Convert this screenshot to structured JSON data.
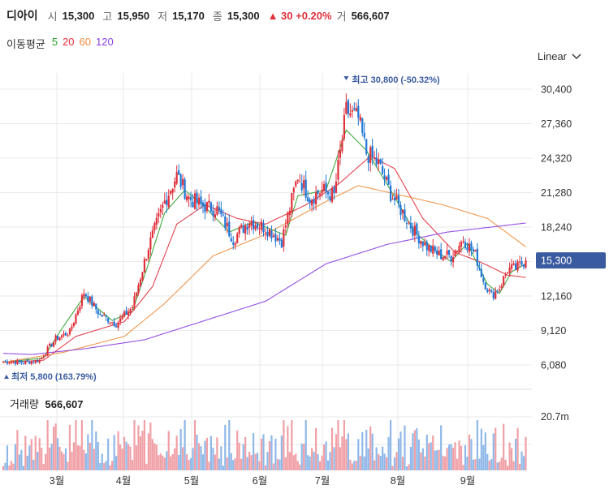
{
  "header": {
    "name": "디아이",
    "open_label": "시",
    "open": "15,300",
    "high_label": "고",
    "high": "15,950",
    "low_label": "저",
    "low": "15,170",
    "close_label": "종",
    "close": "15,300",
    "change": "▲ 30 +0.20%",
    "volume_label": "거",
    "volume": "566,607"
  },
  "ma_legend": {
    "title": "이동평균",
    "items": [
      {
        "label": "5",
        "color": "#2ca02c"
      },
      {
        "label": "20",
        "color": "#e0303b"
      },
      {
        "label": "60",
        "color": "#f08c3a"
      },
      {
        "label": "120",
        "color": "#8a3ee0"
      }
    ]
  },
  "scale_selector": {
    "value": "Linear",
    "icon": "chevron-down-icon"
  },
  "colors": {
    "up": "#e0303b",
    "down": "#1f77d4",
    "grid": "#e9e9e9",
    "tag": "#3a5ba0"
  },
  "chart_data": {
    "type": "candlestick",
    "y_ticks": [
      "30,400",
      "27,360",
      "24,320",
      "21,280",
      "18,240",
      "15,300",
      "12,160",
      "9,120",
      "6,080"
    ],
    "y_range": [
      6080,
      30400
    ],
    "months": [
      "3월",
      "4월",
      "5월",
      "6월",
      "7월",
      "8월",
      "9월"
    ],
    "current_price": "15,300",
    "high_annotation": "최고 30,800 (-50.32%)",
    "low_annotation": "최저 5,800 (163.79%)",
    "volume_title": "거래량",
    "volume_value": "566,607",
    "volume_tick": "20.7m",
    "ohlc_anchors": [
      [
        0,
        6400
      ],
      [
        10,
        6300
      ],
      [
        18,
        6500
      ],
      [
        26,
        8400
      ],
      [
        33,
        9000
      ],
      [
        40,
        12500
      ],
      [
        48,
        10500
      ],
      [
        56,
        9700
      ],
      [
        64,
        11200
      ],
      [
        72,
        16500
      ],
      [
        80,
        20500
      ],
      [
        86,
        22800
      ],
      [
        92,
        20800
      ],
      [
        98,
        20200
      ],
      [
        106,
        19800
      ],
      [
        114,
        17200
      ],
      [
        122,
        18800
      ],
      [
        130,
        18200
      ],
      [
        138,
        17000
      ],
      [
        146,
        22800
      ],
      [
        152,
        20800
      ],
      [
        158,
        21500
      ],
      [
        164,
        21000
      ],
      [
        170,
        28500
      ],
      [
        176,
        27800
      ],
      [
        180,
        24800
      ],
      [
        186,
        23800
      ],
      [
        192,
        21200
      ],
      [
        198,
        19500
      ],
      [
        204,
        17800
      ],
      [
        210,
        16500
      ],
      [
        216,
        15800
      ],
      [
        222,
        15700
      ],
      [
        228,
        17200
      ],
      [
        234,
        15800
      ],
      [
        238,
        13500
      ],
      [
        242,
        12200
      ],
      [
        246,
        12900
      ],
      [
        250,
        14500
      ],
      [
        254,
        14600
      ],
      [
        259,
        15300
      ]
    ],
    "ma_series": {
      "ma5": [
        [
          0,
          6300
        ],
        [
          20,
          6700
        ],
        [
          28,
          9000
        ],
        [
          40,
          12100
        ],
        [
          54,
          10000
        ],
        [
          64,
          10800
        ],
        [
          72,
          15000
        ],
        [
          80,
          19500
        ],
        [
          90,
          21500
        ],
        [
          100,
          20000
        ],
        [
          112,
          17800
        ],
        [
          124,
          18700
        ],
        [
          140,
          17500
        ],
        [
          146,
          21000
        ],
        [
          160,
          21500
        ],
        [
          170,
          26800
        ],
        [
          180,
          25000
        ],
        [
          192,
          21500
        ],
        [
          204,
          17800
        ],
        [
          214,
          16200
        ],
        [
          222,
          15200
        ],
        [
          230,
          16800
        ],
        [
          240,
          13200
        ],
        [
          246,
          12400
        ],
        [
          252,
          14300
        ],
        [
          259,
          15000
        ]
      ],
      "ma20": [
        [
          0,
          6300
        ],
        [
          20,
          6500
        ],
        [
          36,
          8600
        ],
        [
          60,
          9900
        ],
        [
          74,
          13000
        ],
        [
          86,
          18500
        ],
        [
          100,
          20200
        ],
        [
          116,
          19000
        ],
        [
          130,
          18500
        ],
        [
          150,
          20200
        ],
        [
          166,
          22000
        ],
        [
          182,
          24500
        ],
        [
          194,
          23400
        ],
        [
          208,
          19000
        ],
        [
          224,
          16000
        ],
        [
          236,
          15200
        ],
        [
          250,
          14000
        ],
        [
          259,
          13800
        ]
      ],
      "ma60": [
        [
          0,
          6300
        ],
        [
          30,
          7200
        ],
        [
          60,
          8600
        ],
        [
          80,
          11500
        ],
        [
          104,
          15700
        ],
        [
          130,
          17600
        ],
        [
          160,
          20500
        ],
        [
          176,
          21900
        ],
        [
          196,
          21100
        ],
        [
          218,
          20200
        ],
        [
          240,
          19000
        ],
        [
          259,
          16500
        ]
      ],
      "ma120": [
        [
          0,
          7100
        ],
        [
          14,
          7000
        ],
        [
          40,
          7500
        ],
        [
          70,
          8300
        ],
        [
          100,
          10000
        ],
        [
          130,
          11700
        ],
        [
          160,
          15000
        ],
        [
          190,
          16700
        ],
        [
          220,
          17800
        ],
        [
          240,
          18200
        ],
        [
          259,
          18600
        ]
      ]
    }
  }
}
